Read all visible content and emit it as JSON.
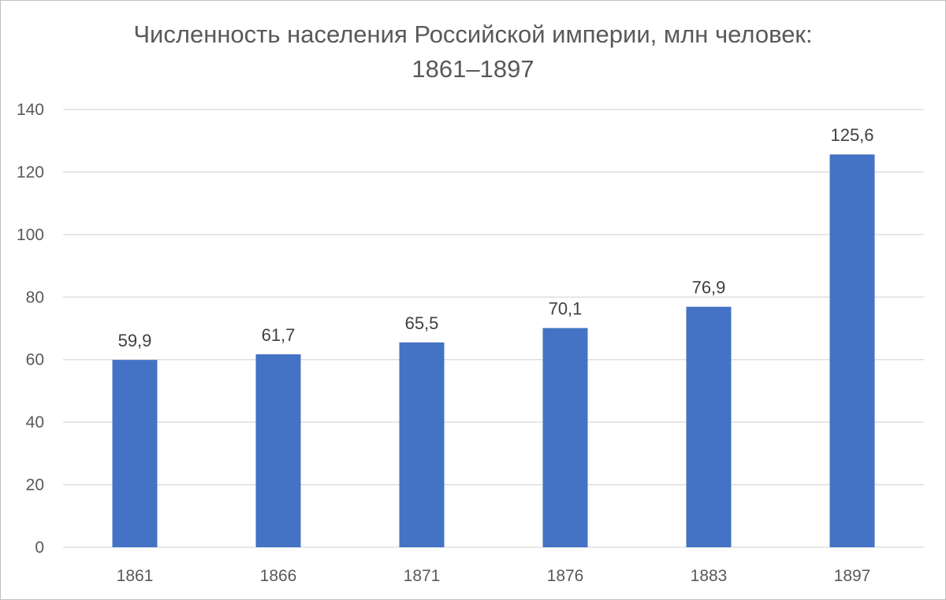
{
  "chart_data": {
    "type": "bar",
    "title_line1": "Численность населения Российской империи, млн человек:",
    "title_line2": "1861–1897",
    "categories": [
      "1861",
      "1866",
      "1871",
      "1876",
      "1883",
      "1897"
    ],
    "values": [
      59.9,
      61.7,
      65.5,
      70.1,
      76.9,
      125.6
    ],
    "data_labels": [
      "59,9",
      "61,7",
      "65,5",
      "70,1",
      "76,9",
      "125,6"
    ],
    "y_ticks": [
      "0",
      "20",
      "40",
      "60",
      "80",
      "100",
      "120",
      "140"
    ],
    "ylim": [
      0,
      140
    ],
    "grid": true,
    "legend": "none",
    "bar_color": "#4472C4",
    "grid_color": "#d9d9d9"
  }
}
